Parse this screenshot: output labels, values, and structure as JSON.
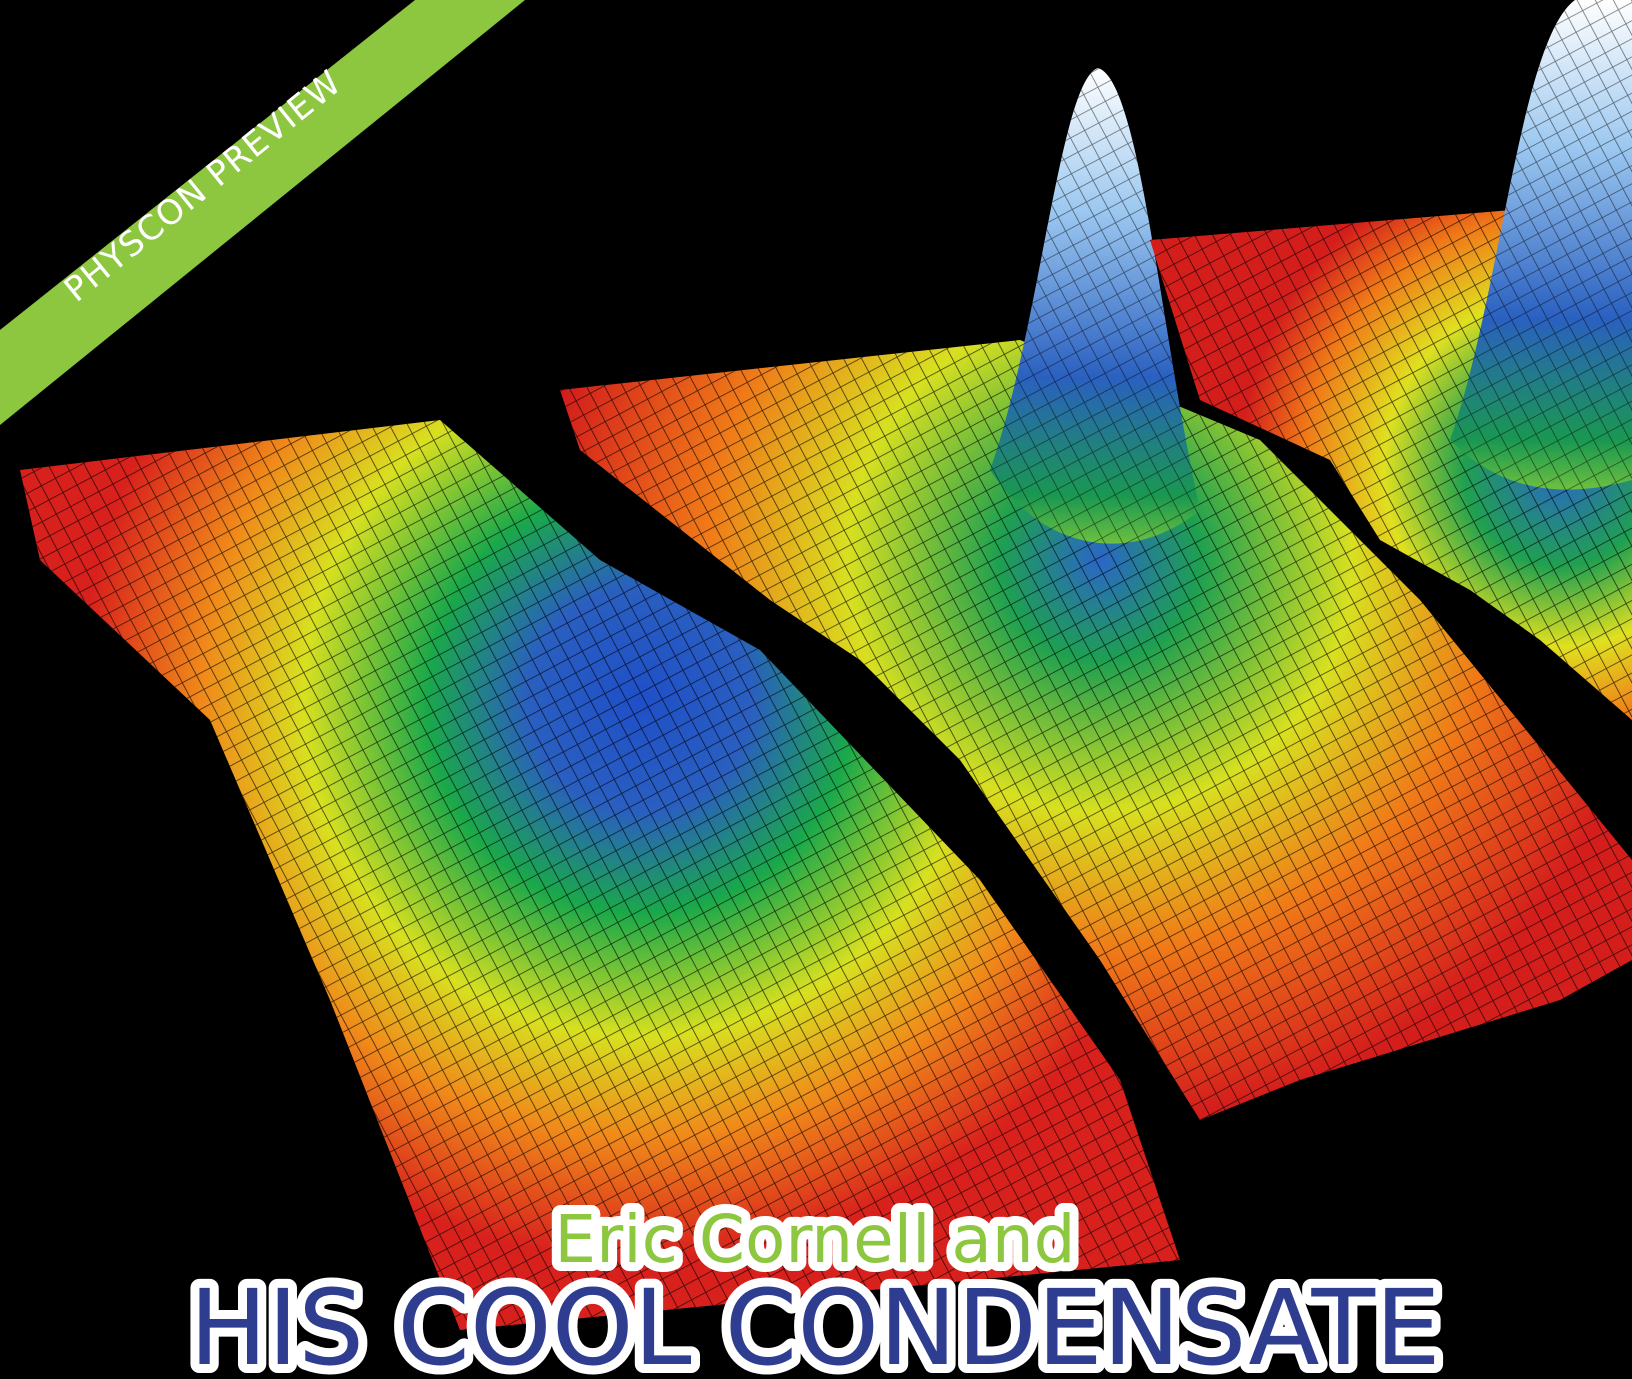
{
  "banner": "PHYSCON PREVIEW",
  "title": {
    "kicker": "Eric Cornell and",
    "headline": "HIS COOL CONDENSATE"
  }
}
